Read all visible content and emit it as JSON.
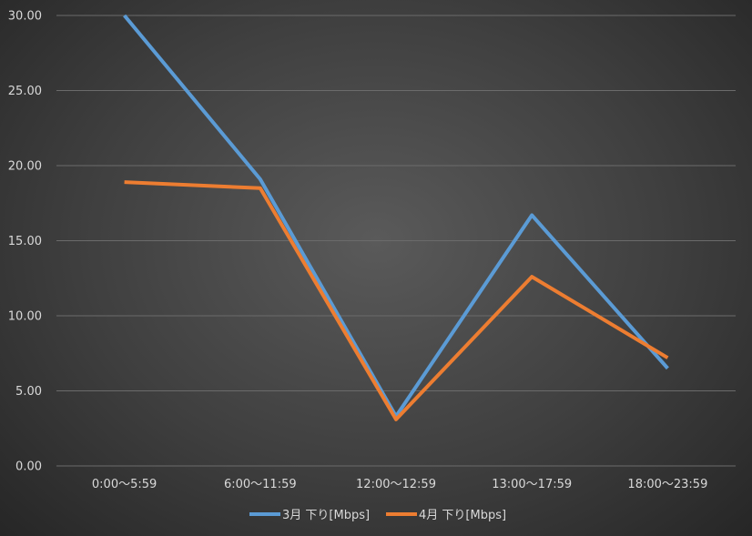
{
  "chart_data": {
    "type": "line",
    "title": "",
    "xlabel": "",
    "ylabel": "",
    "categories": [
      "0:00～5:59",
      "6:00～11:59",
      "12:00～12:59",
      "13:00～17:59",
      "18:00～23:59"
    ],
    "ylim": [
      0,
      30
    ],
    "yticks": [
      "0.00",
      "5.00",
      "10.00",
      "15.00",
      "20.00",
      "25.00",
      "30.00"
    ],
    "grid": true,
    "legend_position": "bottom",
    "series": [
      {
        "name": "3月 下り[Mbps]",
        "color": "#5b9bd5",
        "values": [
          30.0,
          19.1,
          3.3,
          16.7,
          6.5
        ]
      },
      {
        "name": "4月 下り[Mbps]",
        "color": "#ed7d31",
        "values": [
          18.9,
          18.5,
          3.1,
          12.6,
          7.2
        ]
      }
    ]
  }
}
